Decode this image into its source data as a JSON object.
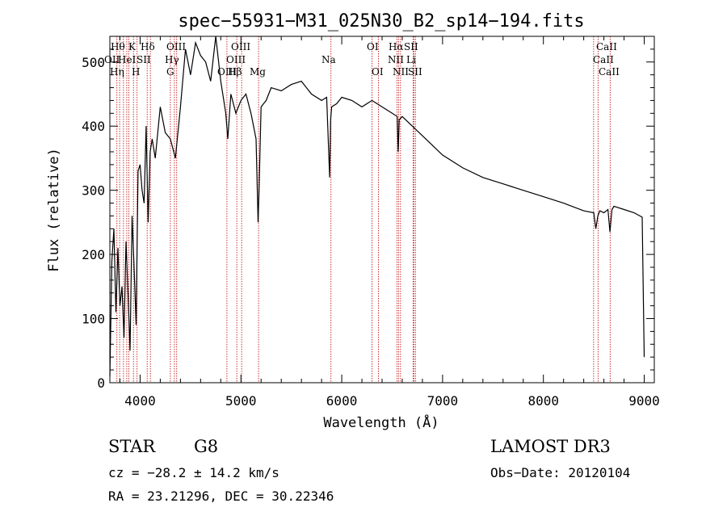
{
  "chart_data": {
    "type": "line",
    "title": "spec−55931−M31_025N30_B2_sp14−194.fits",
    "xlabel": "Wavelength (Å)",
    "ylabel": "Flux (relative)",
    "xlim": [
      3700,
      9100
    ],
    "ylim": [
      0,
      540
    ],
    "x_ticks": [
      4000,
      5000,
      6000,
      7000,
      8000,
      9000
    ],
    "y_ticks": [
      0,
      100,
      200,
      300,
      400,
      500
    ],
    "series": [
      {
        "name": "spectrum",
        "x": [
          3700,
          3720,
          3740,
          3760,
          3780,
          3800,
          3820,
          3840,
          3860,
          3880,
          3900,
          3920,
          3940,
          3960,
          3980,
          4000,
          4020,
          4040,
          4060,
          4080,
          4100,
          4120,
          4150,
          4200,
          4250,
          4300,
          4350,
          4400,
          4450,
          4500,
          4550,
          4600,
          4650,
          4700,
          4750,
          4800,
          4850,
          4870,
          4900,
          4950,
          5000,
          5050,
          5100,
          5150,
          5170,
          5180,
          5200,
          5250,
          5300,
          5400,
          5500,
          5600,
          5700,
          5800,
          5850,
          5880,
          5890,
          5900,
          5950,
          6000,
          6100,
          6200,
          6300,
          6400,
          6500,
          6550,
          6560,
          6570,
          6600,
          6700,
          6800,
          6900,
          7000,
          7200,
          7400,
          7600,
          7800,
          8000,
          8200,
          8400,
          8500,
          8520,
          8540,
          8560,
          8600,
          8640,
          8660,
          8680,
          8700,
          8800,
          8900,
          8980,
          9000
        ],
        "values": [
          10,
          190,
          240,
          110,
          210,
          120,
          150,
          70,
          220,
          140,
          50,
          260,
          180,
          90,
          330,
          340,
          300,
          280,
          400,
          250,
          360,
          380,
          350,
          430,
          390,
          380,
          350,
          430,
          520,
          480,
          530,
          510,
          500,
          470,
          540,
          470,
          420,
          380,
          450,
          420,
          440,
          450,
          420,
          380,
          250,
          300,
          430,
          440,
          460,
          455,
          465,
          470,
          450,
          440,
          445,
          320,
          410,
          430,
          435,
          445,
          440,
          430,
          440,
          430,
          420,
          415,
          360,
          410,
          415,
          400,
          385,
          370,
          355,
          335,
          320,
          310,
          300,
          290,
          280,
          268,
          265,
          240,
          260,
          268,
          265,
          270,
          235,
          270,
          275,
          270,
          265,
          258,
          40
        ]
      }
    ],
    "line_labels": [
      {
        "text": "Hθ"
      },
      {
        "text": "K"
      },
      {
        "text": "Hδ"
      },
      {
        "text": "OII"
      },
      {
        "text": "HeI"
      },
      {
        "text": "SII"
      },
      {
        "text": "OIII"
      },
      {
        "text": "Hγ"
      },
      {
        "text": "OIII"
      },
      {
        "text": "Hη"
      },
      {
        "text": "H"
      },
      {
        "text": "G"
      },
      {
        "text": "OIII"
      },
      {
        "text": "OIII"
      },
      {
        "text": "Hβ"
      },
      {
        "text": "Mg"
      },
      {
        "text": "Na"
      },
      {
        "text": "OI"
      },
      {
        "text": "OI"
      },
      {
        "text": "Hα"
      },
      {
        "text": "SII"
      },
      {
        "text": "NII"
      },
      {
        "text": "Li"
      },
      {
        "text": "NII"
      },
      {
        "text": "SII"
      },
      {
        "text": "CaII"
      },
      {
        "text": "CaII"
      },
      {
        "text": "CaII"
      }
    ]
  },
  "info": {
    "object_class": "STAR",
    "subclass": "G8",
    "survey": "LAMOST DR3",
    "cz": "cz = −28.2 ± 14.2 km/s",
    "obs_date": "Obs−Date: 20120104",
    "coords": "RA =  23.21296, DEC =  30.22346"
  }
}
